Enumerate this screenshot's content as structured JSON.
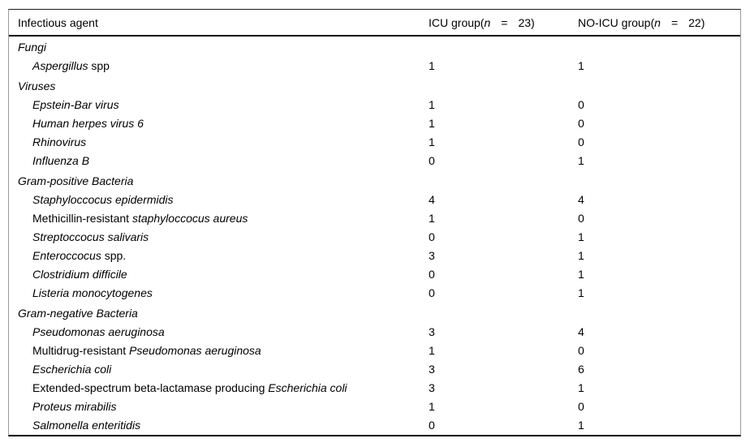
{
  "table": {
    "header": {
      "agent_label": "Infectious agent",
      "icu": {
        "prefix": "ICU group(",
        "n": "n",
        "equals": "=",
        "count": "23)"
      },
      "no_icu": {
        "prefix": "NO-ICU group(",
        "n": "n",
        "equals": "=",
        "count": "22)"
      }
    },
    "sections": [
      {
        "name": "Fungi",
        "rows": [
          {
            "agent": [
              {
                "t": "Aspergillus",
                "i": true
              },
              {
                "t": " spp",
                "i": false
              }
            ],
            "icu": "1",
            "no_icu": "1"
          }
        ]
      },
      {
        "name": "Viruses",
        "rows": [
          {
            "agent": [
              {
                "t": "Epstein-Bar virus",
                "i": true
              }
            ],
            "icu": "1",
            "no_icu": "0"
          },
          {
            "agent": [
              {
                "t": "Human herpes virus 6",
                "i": true
              }
            ],
            "icu": "1",
            "no_icu": "0"
          },
          {
            "agent": [
              {
                "t": "Rhinovirus",
                "i": true
              }
            ],
            "icu": "1",
            "no_icu": "0"
          },
          {
            "agent": [
              {
                "t": "Influenza B",
                "i": true
              }
            ],
            "icu": "0",
            "no_icu": "1"
          }
        ]
      },
      {
        "name": "Gram-positive Bacteria",
        "rows": [
          {
            "agent": [
              {
                "t": "Staphyloccocus epidermidis",
                "i": true
              }
            ],
            "icu": "4",
            "no_icu": "4"
          },
          {
            "agent": [
              {
                "t": "Methicillin-resistant ",
                "i": false
              },
              {
                "t": "staphyloccocus aureus",
                "i": true
              }
            ],
            "icu": "1",
            "no_icu": "0"
          },
          {
            "agent": [
              {
                "t": "Streptoccocus salivaris",
                "i": true
              }
            ],
            "icu": "0",
            "no_icu": "1"
          },
          {
            "agent": [
              {
                "t": "Enteroccocus",
                "i": true
              },
              {
                "t": " spp.",
                "i": false
              }
            ],
            "icu": "3",
            "no_icu": "1"
          },
          {
            "agent": [
              {
                "t": "Clostridium difficile",
                "i": true
              }
            ],
            "icu": "0",
            "no_icu": "1"
          },
          {
            "agent": [
              {
                "t": "Listeria monocytogenes",
                "i": true
              }
            ],
            "icu": "0",
            "no_icu": "1"
          }
        ]
      },
      {
        "name": "Gram-negative Bacteria",
        "rows": [
          {
            "agent": [
              {
                "t": "Pseudomonas aeruginosa",
                "i": true
              }
            ],
            "icu": "3",
            "no_icu": "4"
          },
          {
            "agent": [
              {
                "t": "Multidrug-resistant ",
                "i": false
              },
              {
                "t": "Pseudomonas aeruginosa",
                "i": true
              }
            ],
            "icu": "1",
            "no_icu": "0"
          },
          {
            "agent": [
              {
                "t": "Escherichia coli",
                "i": true
              }
            ],
            "icu": "3",
            "no_icu": "6"
          },
          {
            "agent": [
              {
                "t": "Extended-spectrum beta-lactamase producing ",
                "i": false
              },
              {
                "t": "Escherichia coli",
                "i": true
              }
            ],
            "icu": "3",
            "no_icu": "1"
          },
          {
            "agent": [
              {
                "t": "Proteus mirabilis",
                "i": true
              }
            ],
            "icu": "1",
            "no_icu": "0"
          },
          {
            "agent": [
              {
                "t": "Salmonella enteritidis",
                "i": true
              }
            ],
            "icu": "0",
            "no_icu": "1"
          }
        ]
      }
    ],
    "colors": {
      "text": "#000000",
      "background": "#ffffff",
      "thin_border": "#9b9b9b",
      "thick_border": "#000000"
    }
  }
}
